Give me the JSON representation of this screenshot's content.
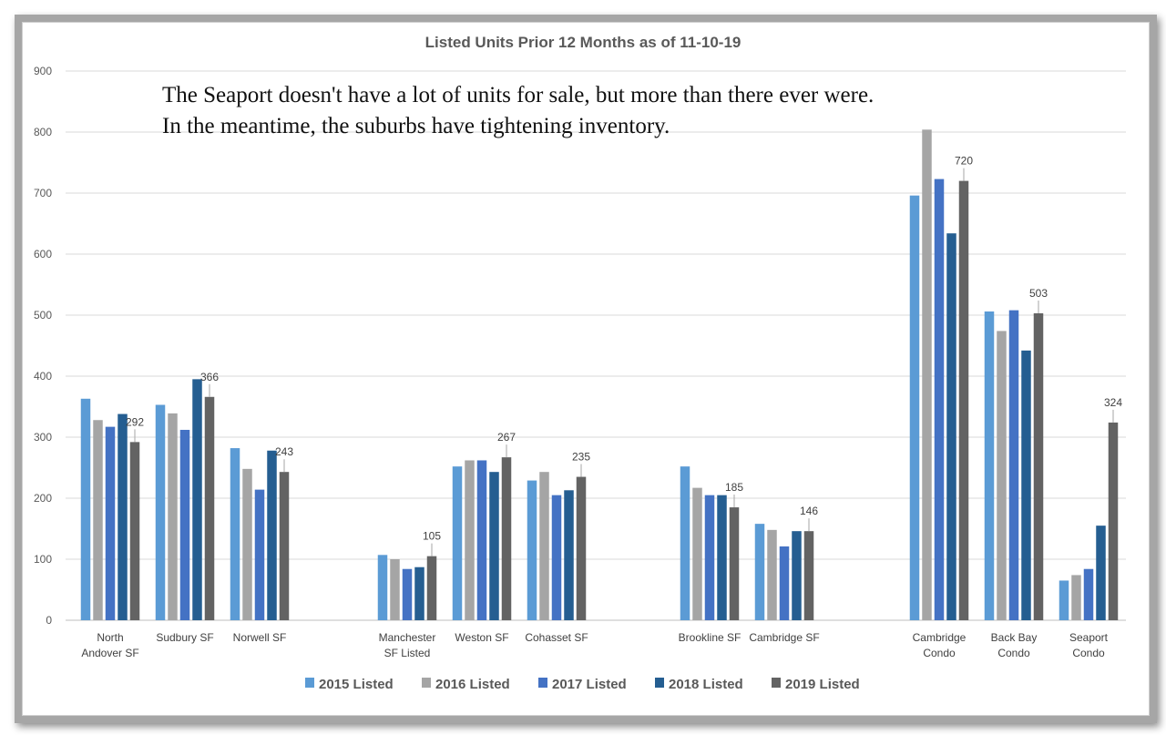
{
  "chart_data": {
    "type": "bar",
    "title": "Listed Units Prior 12 Months as of 11-10-19",
    "annotation": [
      "The Seaport doesn't have a lot of units for sale, but more than there ever were.",
      "In the meantime,  the suburbs have tightening inventory."
    ],
    "ylim": [
      0,
      900
    ],
    "yticks": [
      0,
      100,
      200,
      300,
      400,
      500,
      600,
      700,
      800,
      900
    ],
    "grid": true,
    "legend_position": "bottom",
    "groups": [
      {
        "categories": [
          [
            "North",
            "Andover SF"
          ],
          [
            "Sudbury SF"
          ],
          [
            "Norwell SF"
          ]
        ]
      },
      {
        "categories": [
          [
            "Manchester",
            "SF Listed"
          ],
          [
            "Weston SF"
          ],
          [
            "Cohasset SF"
          ]
        ]
      },
      {
        "categories": [
          [
            "Brookline SF"
          ],
          [
            "Cambridge SF"
          ]
        ]
      },
      {
        "categories": [
          [
            "Cambridge",
            "Condo"
          ],
          [
            "Back Bay",
            "Condo"
          ],
          [
            "Seaport",
            "Condo"
          ]
        ]
      }
    ],
    "series": [
      {
        "name": "2015 Listed",
        "color": "#5b9bd5",
        "values": [
          363,
          353,
          282,
          107,
          252,
          229,
          252,
          158,
          696,
          506,
          65
        ]
      },
      {
        "name": "2016 Listed",
        "color": "#a5a5a5",
        "values": [
          328,
          339,
          248,
          100,
          262,
          243,
          217,
          148,
          804,
          474,
          74
        ]
      },
      {
        "name": "2017 Listed",
        "color": "#4472c4",
        "values": [
          317,
          312,
          214,
          84,
          262,
          205,
          205,
          121,
          723,
          508,
          84
        ]
      },
      {
        "name": "2018 Listed",
        "color": "#255e91",
        "values": [
          338,
          395,
          278,
          87,
          243,
          213,
          205,
          146,
          634,
          442,
          155
        ]
      },
      {
        "name": "2019 Listed",
        "color": "#636363",
        "values": [
          292,
          366,
          243,
          105,
          267,
          235,
          185,
          146,
          720,
          503,
          324
        ]
      }
    ],
    "data_labels_series": "2019 Listed"
  }
}
